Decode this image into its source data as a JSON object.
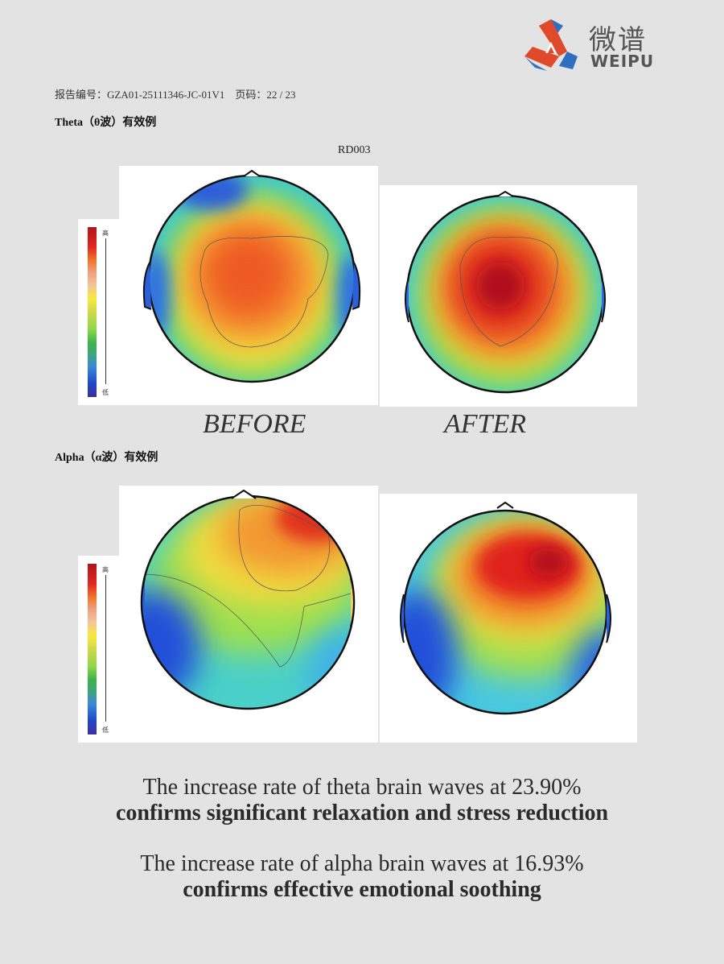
{
  "logo": {
    "cn": "微谱",
    "en": "WEIPU",
    "colors": {
      "red": "#e04a2a",
      "blue": "#2f6fc0"
    }
  },
  "header": {
    "report_no": "报告编号：GZA01-25111346-JC-01V1　页码：22 / 23"
  },
  "theta": {
    "title": "Theta（θ波）有效例",
    "subject": "RD003",
    "before": "BEFORE",
    "after": "AFTER"
  },
  "alpha": {
    "title": "Alpha（α波）有效例"
  },
  "colorbar": {
    "high": "高",
    "low": "低"
  },
  "captions": [
    {
      "line1": "The increase rate of theta brain waves at 23.90%",
      "line2": "confirms significant relaxation and stress reduction"
    },
    {
      "line1": "The increase rate of alpha brain waves at 16.93%",
      "line2": "confirms effective emotional soothing"
    }
  ]
}
